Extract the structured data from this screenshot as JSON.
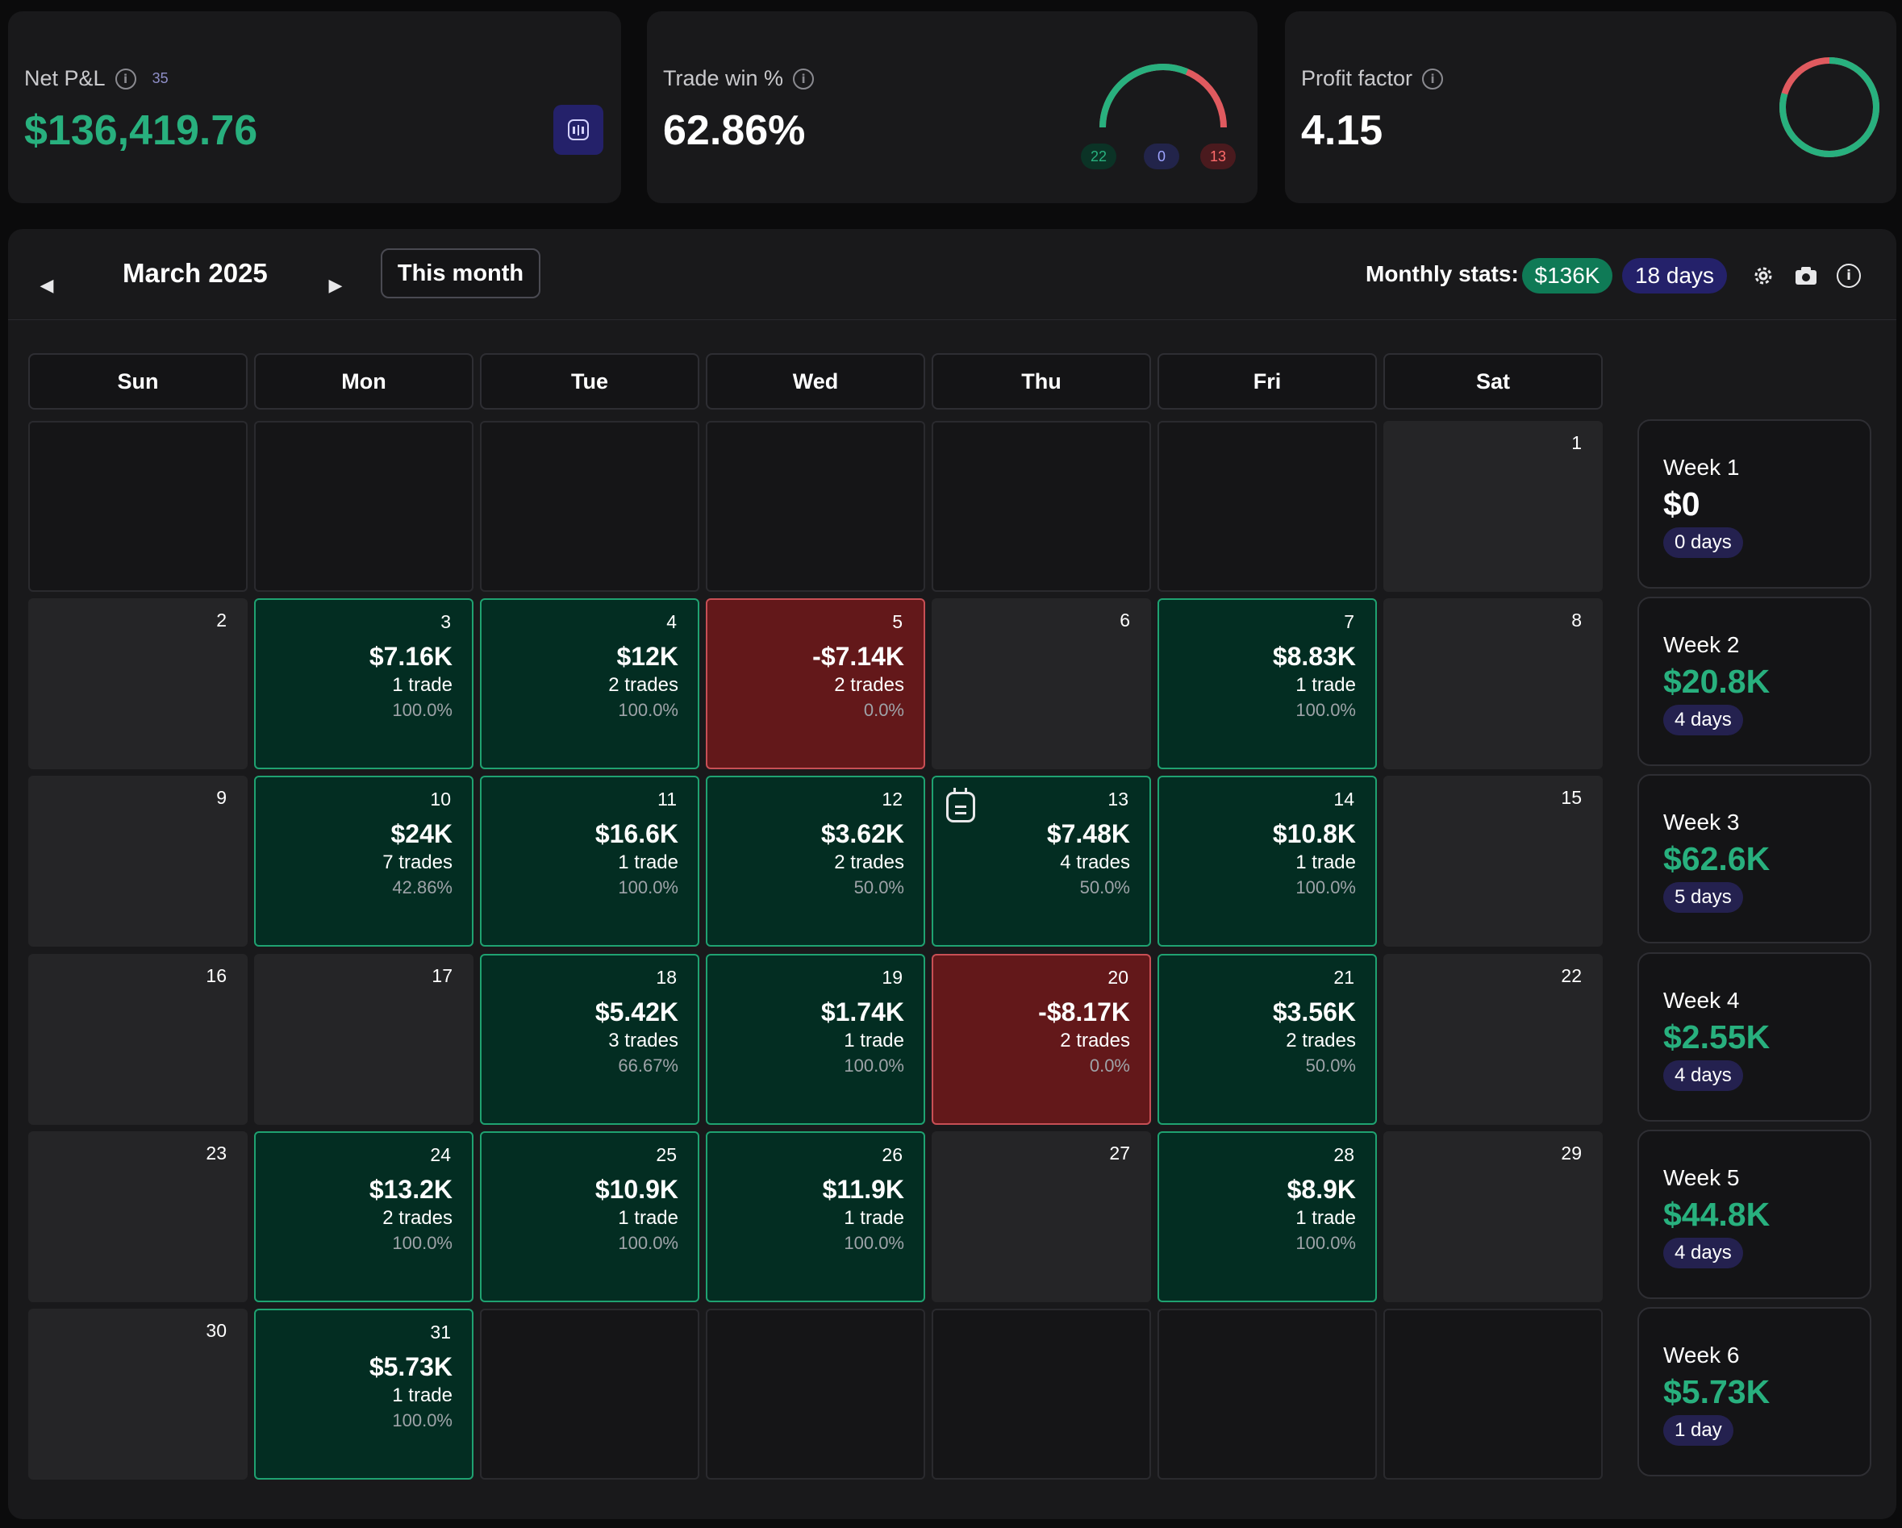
{
  "summary": {
    "net_pnl": {
      "label": "Net P&L",
      "count": "35",
      "value": "$136,419.76"
    },
    "win_rate": {
      "label": "Trade win %",
      "value": "62.86%",
      "wins": "22",
      "breakeven": "0",
      "losses": "13",
      "win_fraction": 0.6286
    },
    "profit_factor": {
      "label": "Profit factor",
      "value": "4.15"
    }
  },
  "calendar": {
    "month_title": "March 2025",
    "this_month_label": "This month",
    "stats_label": "Monthly stats:",
    "stats_pnl": "$136K",
    "stats_days": "18 days",
    "weekdays": [
      "Sun",
      "Mon",
      "Tue",
      "Wed",
      "Thu",
      "Fri",
      "Sat"
    ],
    "weeks": [
      {
        "days": [
          {
            "type": "blank"
          },
          {
            "type": "blank"
          },
          {
            "type": "blank"
          },
          {
            "type": "blank"
          },
          {
            "type": "blank"
          },
          {
            "type": "blank"
          },
          {
            "type": "empty",
            "day": "1"
          }
        ],
        "summary": {
          "label": "Week 1",
          "value": "$0",
          "days": "0 days"
        }
      },
      {
        "days": [
          {
            "type": "empty",
            "day": "2"
          },
          {
            "type": "win",
            "day": "3",
            "pnl": "$7.16K",
            "trades": "1 trade",
            "pct": "100.0%"
          },
          {
            "type": "win",
            "day": "4",
            "pnl": "$12K",
            "trades": "2 trades",
            "pct": "100.0%"
          },
          {
            "type": "loss",
            "day": "5",
            "pnl": "-$7.14K",
            "trades": "2 trades",
            "pct": "0.0%"
          },
          {
            "type": "empty",
            "day": "6"
          },
          {
            "type": "win",
            "day": "7",
            "pnl": "$8.83K",
            "trades": "1 trade",
            "pct": "100.0%"
          },
          {
            "type": "empty",
            "day": "8"
          }
        ],
        "summary": {
          "label": "Week 2",
          "value": "$20.8K",
          "days": "4 days"
        }
      },
      {
        "days": [
          {
            "type": "empty",
            "day": "9"
          },
          {
            "type": "win",
            "day": "10",
            "pnl": "$24K",
            "trades": "7 trades",
            "pct": "42.86%"
          },
          {
            "type": "win",
            "day": "11",
            "pnl": "$16.6K",
            "trades": "1 trade",
            "pct": "100.0%"
          },
          {
            "type": "win",
            "day": "12",
            "pnl": "$3.62K",
            "trades": "2 trades",
            "pct": "50.0%"
          },
          {
            "type": "win",
            "day": "13",
            "pnl": "$7.48K",
            "trades": "4 trades",
            "pct": "50.0%",
            "note": true
          },
          {
            "type": "win",
            "day": "14",
            "pnl": "$10.8K",
            "trades": "1 trade",
            "pct": "100.0%"
          },
          {
            "type": "empty",
            "day": "15"
          }
        ],
        "summary": {
          "label": "Week 3",
          "value": "$62.6K",
          "days": "5 days"
        }
      },
      {
        "days": [
          {
            "type": "empty",
            "day": "16"
          },
          {
            "type": "empty",
            "day": "17"
          },
          {
            "type": "win",
            "day": "18",
            "pnl": "$5.42K",
            "trades": "3 trades",
            "pct": "66.67%"
          },
          {
            "type": "win",
            "day": "19",
            "pnl": "$1.74K",
            "trades": "1 trade",
            "pct": "100.0%"
          },
          {
            "type": "loss",
            "day": "20",
            "pnl": "-$8.17K",
            "trades": "2 trades",
            "pct": "0.0%"
          },
          {
            "type": "win",
            "day": "21",
            "pnl": "$3.56K",
            "trades": "2 trades",
            "pct": "50.0%"
          },
          {
            "type": "empty",
            "day": "22"
          }
        ],
        "summary": {
          "label": "Week 4",
          "value": "$2.55K",
          "days": "4 days"
        }
      },
      {
        "days": [
          {
            "type": "empty",
            "day": "23"
          },
          {
            "type": "win",
            "day": "24",
            "pnl": "$13.2K",
            "trades": "2 trades",
            "pct": "100.0%"
          },
          {
            "type": "win",
            "day": "25",
            "pnl": "$10.9K",
            "trades": "1 trade",
            "pct": "100.0%"
          },
          {
            "type": "win",
            "day": "26",
            "pnl": "$11.9K",
            "trades": "1 trade",
            "pct": "100.0%"
          },
          {
            "type": "empty",
            "day": "27"
          },
          {
            "type": "win",
            "day": "28",
            "pnl": "$8.9K",
            "trades": "1 trade",
            "pct": "100.0%"
          },
          {
            "type": "empty",
            "day": "29"
          }
        ],
        "summary": {
          "label": "Week 5",
          "value": "$44.8K",
          "days": "4 days"
        }
      },
      {
        "days": [
          {
            "type": "empty",
            "day": "30"
          },
          {
            "type": "win",
            "day": "31",
            "pnl": "$5.73K",
            "trades": "1 trade",
            "pct": "100.0%"
          },
          {
            "type": "blank"
          },
          {
            "type": "blank"
          },
          {
            "type": "blank"
          },
          {
            "type": "blank"
          },
          {
            "type": "blank"
          }
        ],
        "summary": {
          "label": "Week 6",
          "value": "$5.73K",
          "days": "1 day"
        }
      }
    ]
  },
  "icons": [
    "info-icon",
    "chart-icon",
    "prev-arrow-icon",
    "next-arrow-icon",
    "gear-icon",
    "camera-icon",
    "note-icon"
  ],
  "colors": {
    "profit": "#28b07e",
    "loss": "#e05a5f",
    "accent_purple": "#24216a"
  }
}
